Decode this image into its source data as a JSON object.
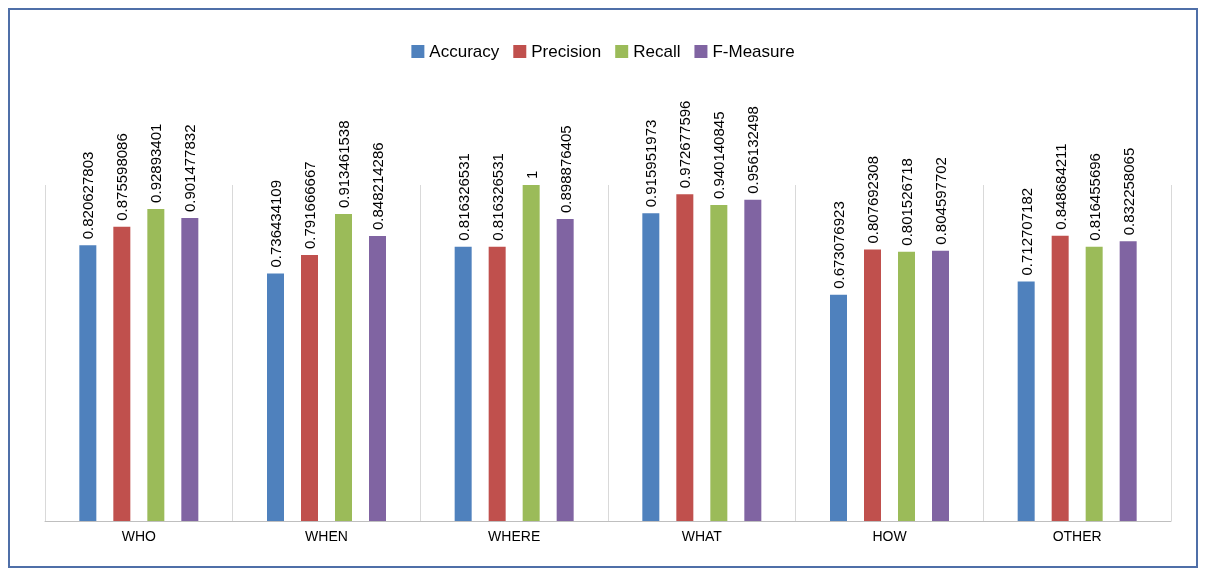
{
  "chart_data": {
    "type": "bar",
    "categories": [
      "WHO",
      "WHEN",
      "WHERE",
      "WHAT",
      "HOW",
      "OTHER"
    ],
    "series": [
      {
        "name": "Accuracy",
        "color": "#4f81bd",
        "values": [
          0.820627803,
          0.736434109,
          0.816326531,
          0.915951973,
          0.673076923,
          0.712707182
        ]
      },
      {
        "name": "Precision",
        "color": "#c0504d",
        "values": [
          0.875598086,
          0.791666667,
          0.816326531,
          0.972677596,
          0.807692308,
          0.848684211
        ]
      },
      {
        "name": "Recall",
        "color": "#9bbb59",
        "values": [
          0.92893401,
          0.913461538,
          1,
          0.940140845,
          0.801526718,
          0.816455696
        ]
      },
      {
        "name": "F-Measure",
        "color": "#8064a2",
        "values": [
          0.901477832,
          0.848214286,
          0.898876405,
          0.956132498,
          0.804597702,
          0.832258065
        ]
      }
    ],
    "data_labels": true,
    "legend": "top",
    "grid": "x",
    "tick_labels": "x"
  }
}
